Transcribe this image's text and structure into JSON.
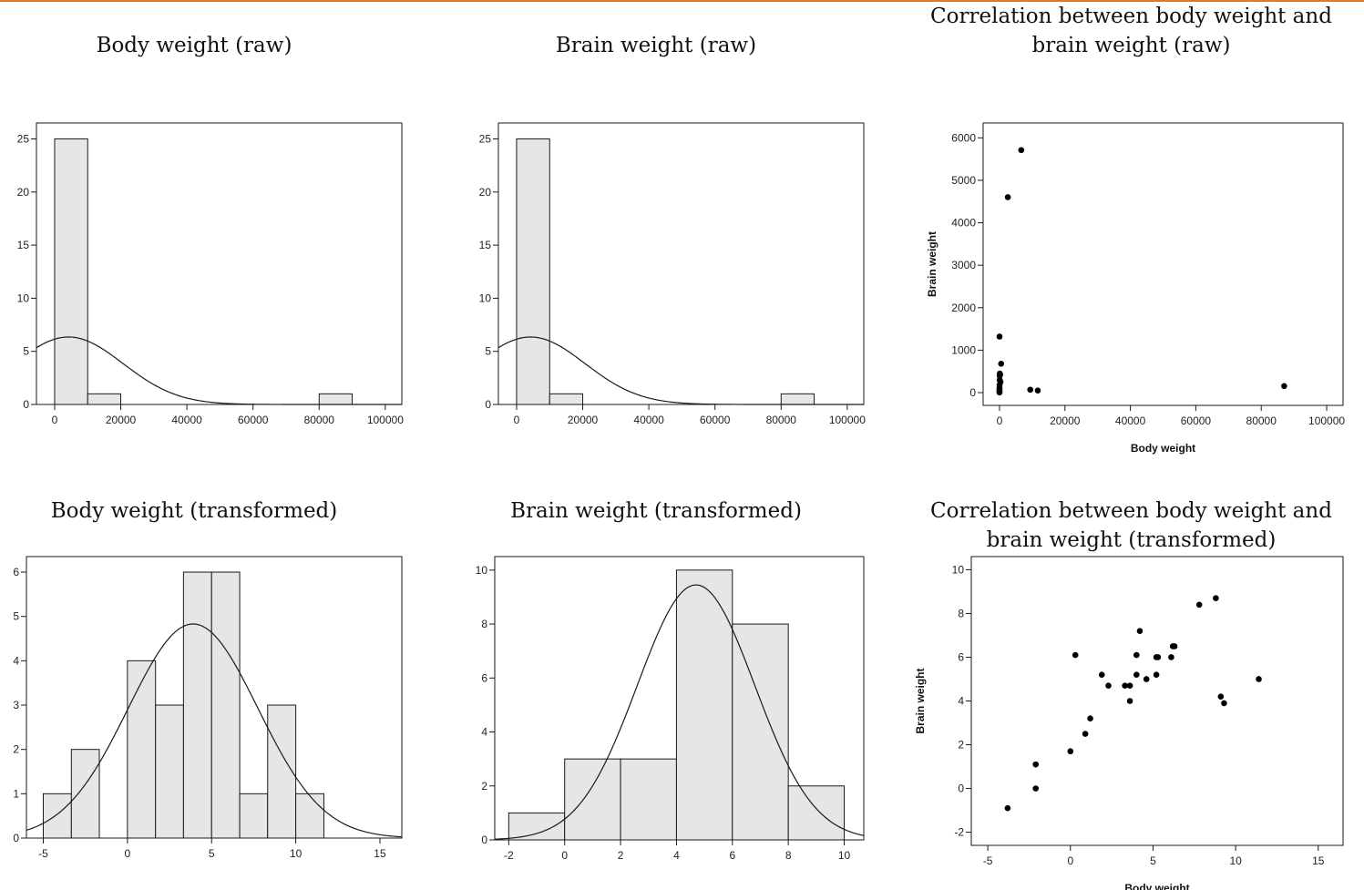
{
  "accent_color": "#e87722",
  "titles": {
    "p1": "Body weight (raw)",
    "p2": "Brain weight (raw)",
    "p3": "Correlation between body weight and brain weight (raw)",
    "p4": "Body weight (transformed)",
    "p5": "Brain weight (transformed)",
    "p6": "Correlation between body weight and brain weight (transformed)"
  },
  "chart_data": [
    {
      "id": "body-raw",
      "type": "bar",
      "title": "Body weight (raw)",
      "bins": [
        [
          0,
          10000,
          25
        ],
        [
          10000,
          20000,
          1
        ],
        [
          80000,
          90000,
          1
        ]
      ],
      "xlim": [
        -5500,
        105000
      ],
      "ylim": [
        0,
        26.5
      ],
      "xticks": [
        0,
        20000,
        40000,
        60000,
        80000,
        100000
      ],
      "yticks": [
        0,
        5,
        10,
        15,
        20,
        25
      ],
      "normal_curve": {
        "mean": 4200,
        "sd": 16500,
        "peak": 6.35
      }
    },
    {
      "id": "brain-raw",
      "type": "bar",
      "title": "Brain weight (raw)",
      "bins": [
        [
          0,
          10000,
          25
        ],
        [
          10000,
          20000,
          1
        ],
        [
          80000,
          90000,
          1
        ]
      ],
      "xlim": [
        -5500,
        105000
      ],
      "ylim": [
        0,
        26.5
      ],
      "xticks": [
        0,
        20000,
        40000,
        60000,
        80000,
        100000
      ],
      "yticks": [
        0,
        5,
        10,
        15,
        20,
        25
      ],
      "normal_curve": {
        "mean": 4200,
        "sd": 16500,
        "peak": 6.35
      }
    },
    {
      "id": "scatter-raw",
      "type": "scatter",
      "title": "Correlation between body weight and brain weight (raw)",
      "xlabel": "Body weight",
      "ylabel": "Brain weight",
      "xlim": [
        -5000,
        105000
      ],
      "ylim": [
        -300,
        6350
      ],
      "xticks": [
        0,
        20000,
        40000,
        60000,
        80000,
        100000
      ],
      "yticks": [
        0,
        1000,
        2000,
        3000,
        4000,
        5000,
        6000
      ],
      "points": [
        [
          6650,
          5712
        ],
        [
          2547,
          4603
        ],
        [
          87000,
          155
        ],
        [
          9400,
          70
        ],
        [
          11700,
          50
        ],
        [
          10,
          1320
        ],
        [
          500,
          680
        ],
        [
          100,
          450
        ],
        [
          200,
          420
        ],
        [
          50,
          400
        ],
        [
          30,
          180
        ],
        [
          5,
          120
        ],
        [
          1,
          80
        ],
        [
          2,
          40
        ],
        [
          0.5,
          20
        ],
        [
          0.1,
          5
        ],
        [
          60,
          300
        ],
        [
          300,
          250
        ]
      ]
    },
    {
      "id": "body-transformed",
      "type": "bar",
      "title": "Body weight (transformed)",
      "bins": [
        [
          -5,
          -3.33,
          1
        ],
        [
          -3.33,
          -1.67,
          2
        ],
        [
          0,
          1.67,
          4
        ],
        [
          1.67,
          3.33,
          3
        ],
        [
          3.33,
          5,
          6
        ],
        [
          5,
          6.67,
          6
        ],
        [
          6.67,
          8.33,
          1
        ],
        [
          8.33,
          10,
          3
        ],
        [
          10,
          11.67,
          1
        ]
      ],
      "xlim": [
        -6,
        16.3
      ],
      "ylim": [
        0,
        6.35
      ],
      "xticks": [
        -5,
        0,
        5,
        10,
        15
      ],
      "yticks": [
        0,
        1,
        2,
        3,
        4,
        5,
        6
      ],
      "normal_curve": {
        "mean": 3.9,
        "sd": 3.85,
        "peak": 4.83
      }
    },
    {
      "id": "brain-transformed",
      "type": "bar",
      "title": "Brain weight (transformed)",
      "bins": [
        [
          -2,
          0,
          1
        ],
        [
          0,
          2,
          3
        ],
        [
          2,
          4,
          3
        ],
        [
          4,
          6,
          10
        ],
        [
          6,
          8,
          8
        ],
        [
          8,
          10,
          2
        ]
      ],
      "xlim": [
        -2.5,
        10.7
      ],
      "ylim": [
        0,
        10.5
      ],
      "xticks": [
        -2,
        0,
        2,
        4,
        6,
        8,
        10
      ],
      "yticks": [
        0,
        2,
        4,
        6,
        8,
        10
      ],
      "normal_curve": {
        "mean": 4.7,
        "sd": 2.1,
        "peak": 9.45
      }
    },
    {
      "id": "scatter-transformed",
      "type": "scatter",
      "title": "Correlation between body weight and brain weight (transformed)",
      "xlabel": "Body weight",
      "ylabel": "Brain weight",
      "xlim": [
        -6,
        16.5
      ],
      "ylim": [
        -2.6,
        10.6
      ],
      "xticks": [
        -5,
        0,
        5,
        10,
        15
      ],
      "yticks": [
        -2,
        0,
        2,
        4,
        6,
        8,
        10
      ],
      "points": [
        [
          -3.8,
          -0.9
        ],
        [
          -2.1,
          0.0
        ],
        [
          -2.1,
          1.1
        ],
        [
          0.0,
          1.7
        ],
        [
          0.9,
          2.5
        ],
        [
          1.2,
          3.2
        ],
        [
          0.3,
          6.1
        ],
        [
          1.9,
          5.2
        ],
        [
          2.3,
          4.7
        ],
        [
          3.3,
          4.7
        ],
        [
          3.6,
          4.0
        ],
        [
          3.6,
          4.7
        ],
        [
          4.0,
          6.1
        ],
        [
          4.0,
          5.2
        ],
        [
          4.2,
          7.2
        ],
        [
          4.6,
          5.0
        ],
        [
          5.2,
          5.2
        ],
        [
          5.2,
          6.0
        ],
        [
          5.3,
          6.0
        ],
        [
          6.1,
          6.0
        ],
        [
          6.2,
          6.5
        ],
        [
          6.3,
          6.5
        ],
        [
          7.8,
          8.4
        ],
        [
          8.8,
          8.7
        ],
        [
          9.1,
          4.2
        ],
        [
          9.3,
          3.9
        ],
        [
          11.4,
          5.0
        ]
      ]
    }
  ]
}
